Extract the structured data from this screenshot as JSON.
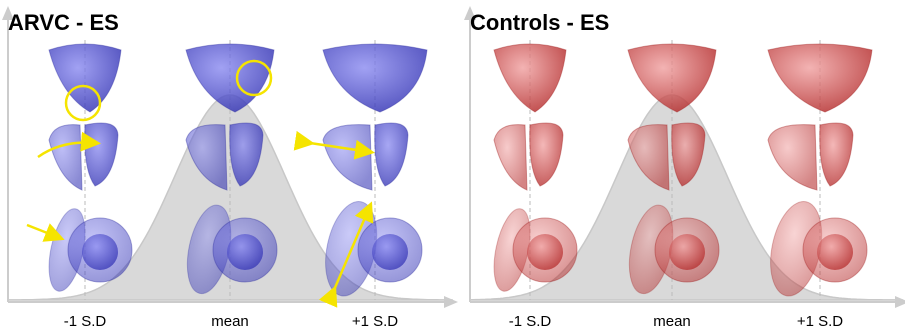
{
  "panels": [
    {
      "title": "ARVC - ES",
      "labels": [
        "-1 S.D",
        "mean",
        "+1 S.D"
      ]
    },
    {
      "title": "Controls - ES",
      "labels": [
        "-1 S.D",
        "mean",
        "+1 S.D"
      ]
    }
  ]
}
